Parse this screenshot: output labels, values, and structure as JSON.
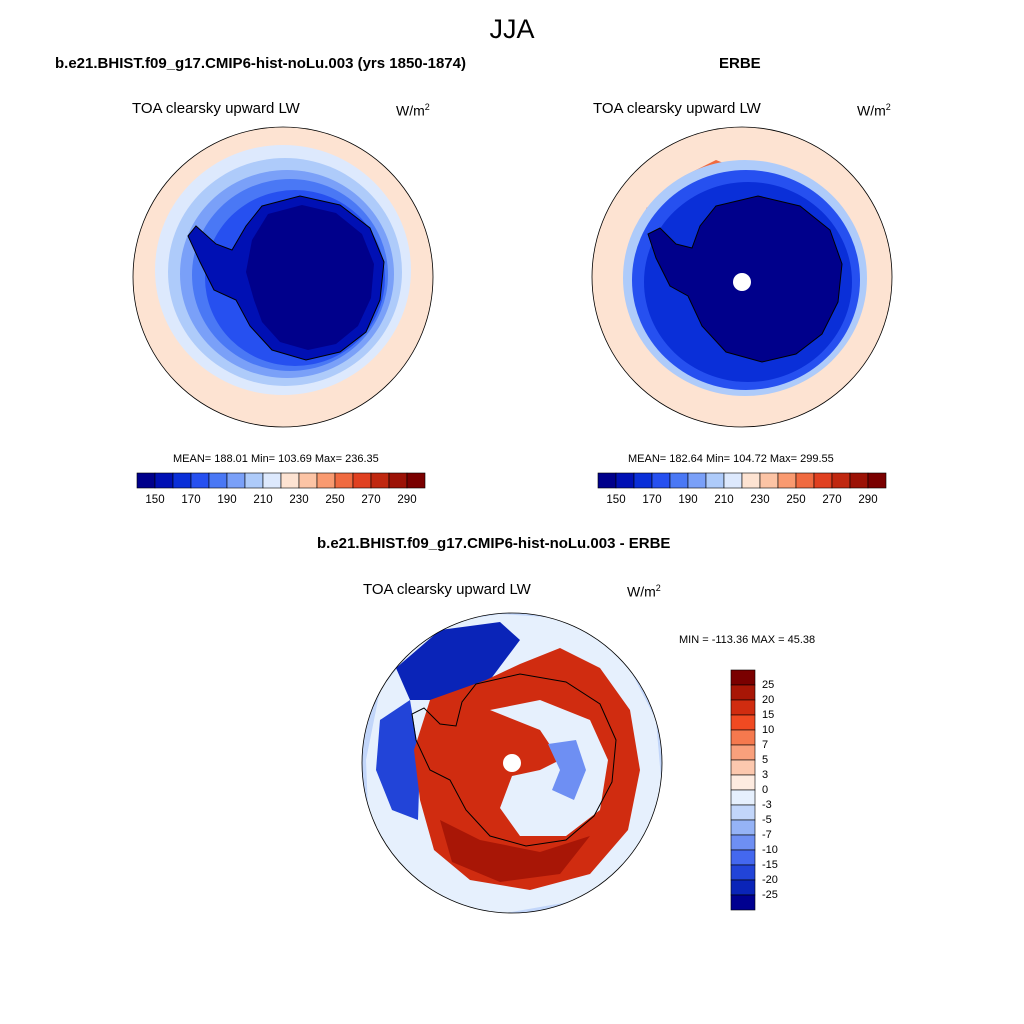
{
  "title": "JJA",
  "panels": [
    {
      "title": "b.e21.BHIST.f09_g17.CMIP6-hist-noLu.003 (yrs 1850-1874)",
      "variable": "TOA clearsky upward LW",
      "units_base": "W/m",
      "units_exp": "2",
      "stats": "MEAN= 188.01  Min= 103.69  Max= 236.35"
    },
    {
      "title": "ERBE",
      "variable": "TOA clearsky upward LW",
      "units_base": "W/m",
      "units_exp": "2",
      "stats": "MEAN= 182.64  Min= 104.72  Max= 299.55"
    },
    {
      "title": "b.e21.BHIST.f09_g17.CMIP6-hist-noLu.003 - ERBE",
      "variable": "TOA clearsky upward LW",
      "units_base": "W/m",
      "units_exp": "2",
      "stats": "MIN = -113.36 MAX =  45.38"
    }
  ],
  "colorbar_abs": {
    "tick_labels": [
      "150",
      "170",
      "190",
      "210",
      "230",
      "250",
      "270",
      "290"
    ],
    "colors": [
      "#00008b",
      "#0010b4",
      "#0a2fd8",
      "#2650f0",
      "#4a78f5",
      "#7aa0f8",
      "#aecbfa",
      "#dde9fd",
      "#fde3d2",
      "#fcc4a5",
      "#f99a70",
      "#f06a40",
      "#e04020",
      "#c02810",
      "#9c1206",
      "#7a0000"
    ]
  },
  "colorbar_diff": {
    "tick_labels": [
      "25",
      "20",
      "15",
      "10",
      "7",
      "5",
      "3",
      "0",
      "-3",
      "-5",
      "-7",
      "-10",
      "-15",
      "-20",
      "-25"
    ],
    "colors": [
      "#7a0000",
      "#a81606",
      "#d02c10",
      "#f04a22",
      "#f5794e",
      "#f9a07c",
      "#fcc8ae",
      "#fdebe0",
      "#e6f0fd",
      "#c2d6fa",
      "#95b3f6",
      "#6e8ff3",
      "#4468ef",
      "#2244d8",
      "#0a24b8",
      "#000090"
    ]
  },
  "map_colors": {
    "ocean_warm": "#fde3d2",
    "ice_edge": "#aecbfa",
    "mid_blue": "#4a78f5",
    "deep_blue": "#00008b",
    "diff_red": "#d02c10",
    "diff_dark_red": "#a81606",
    "diff_blue": "#2244d8",
    "diff_light_blue": "#95b3f6"
  }
}
